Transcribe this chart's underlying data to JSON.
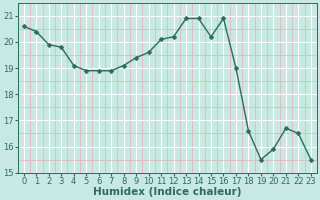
{
  "x": [
    0,
    1,
    2,
    3,
    4,
    5,
    6,
    7,
    8,
    9,
    10,
    11,
    12,
    13,
    14,
    15,
    16,
    17,
    18,
    19,
    20,
    21,
    22,
    23
  ],
  "y": [
    20.6,
    20.4,
    19.9,
    19.8,
    19.1,
    18.9,
    18.9,
    18.9,
    19.1,
    19.4,
    19.6,
    20.1,
    20.2,
    20.9,
    20.9,
    20.2,
    20.9,
    19.0,
    16.6,
    15.5,
    15.9,
    16.7,
    16.5,
    15.5
  ],
  "line_color": "#2d6b5e",
  "marker": "D",
  "marker_size": 2.5,
  "line_width": 1.0,
  "bg_color": "#c8e8e4",
  "grid_major_color": "#ffffff",
  "grid_minor_color": "#e8b0b0",
  "xlabel": "Humidex (Indice chaleur)",
  "ylim": [
    15,
    21.5
  ],
  "xlim": [
    -0.5,
    23.5
  ],
  "yticks": [
    15,
    16,
    17,
    18,
    19,
    20,
    21
  ],
  "xticks": [
    0,
    1,
    2,
    3,
    4,
    5,
    6,
    7,
    8,
    9,
    10,
    11,
    12,
    13,
    14,
    15,
    16,
    17,
    18,
    19,
    20,
    21,
    22,
    23
  ],
  "font_color": "#2d6b5e",
  "tick_fontsize": 6,
  "label_fontsize": 7.5
}
